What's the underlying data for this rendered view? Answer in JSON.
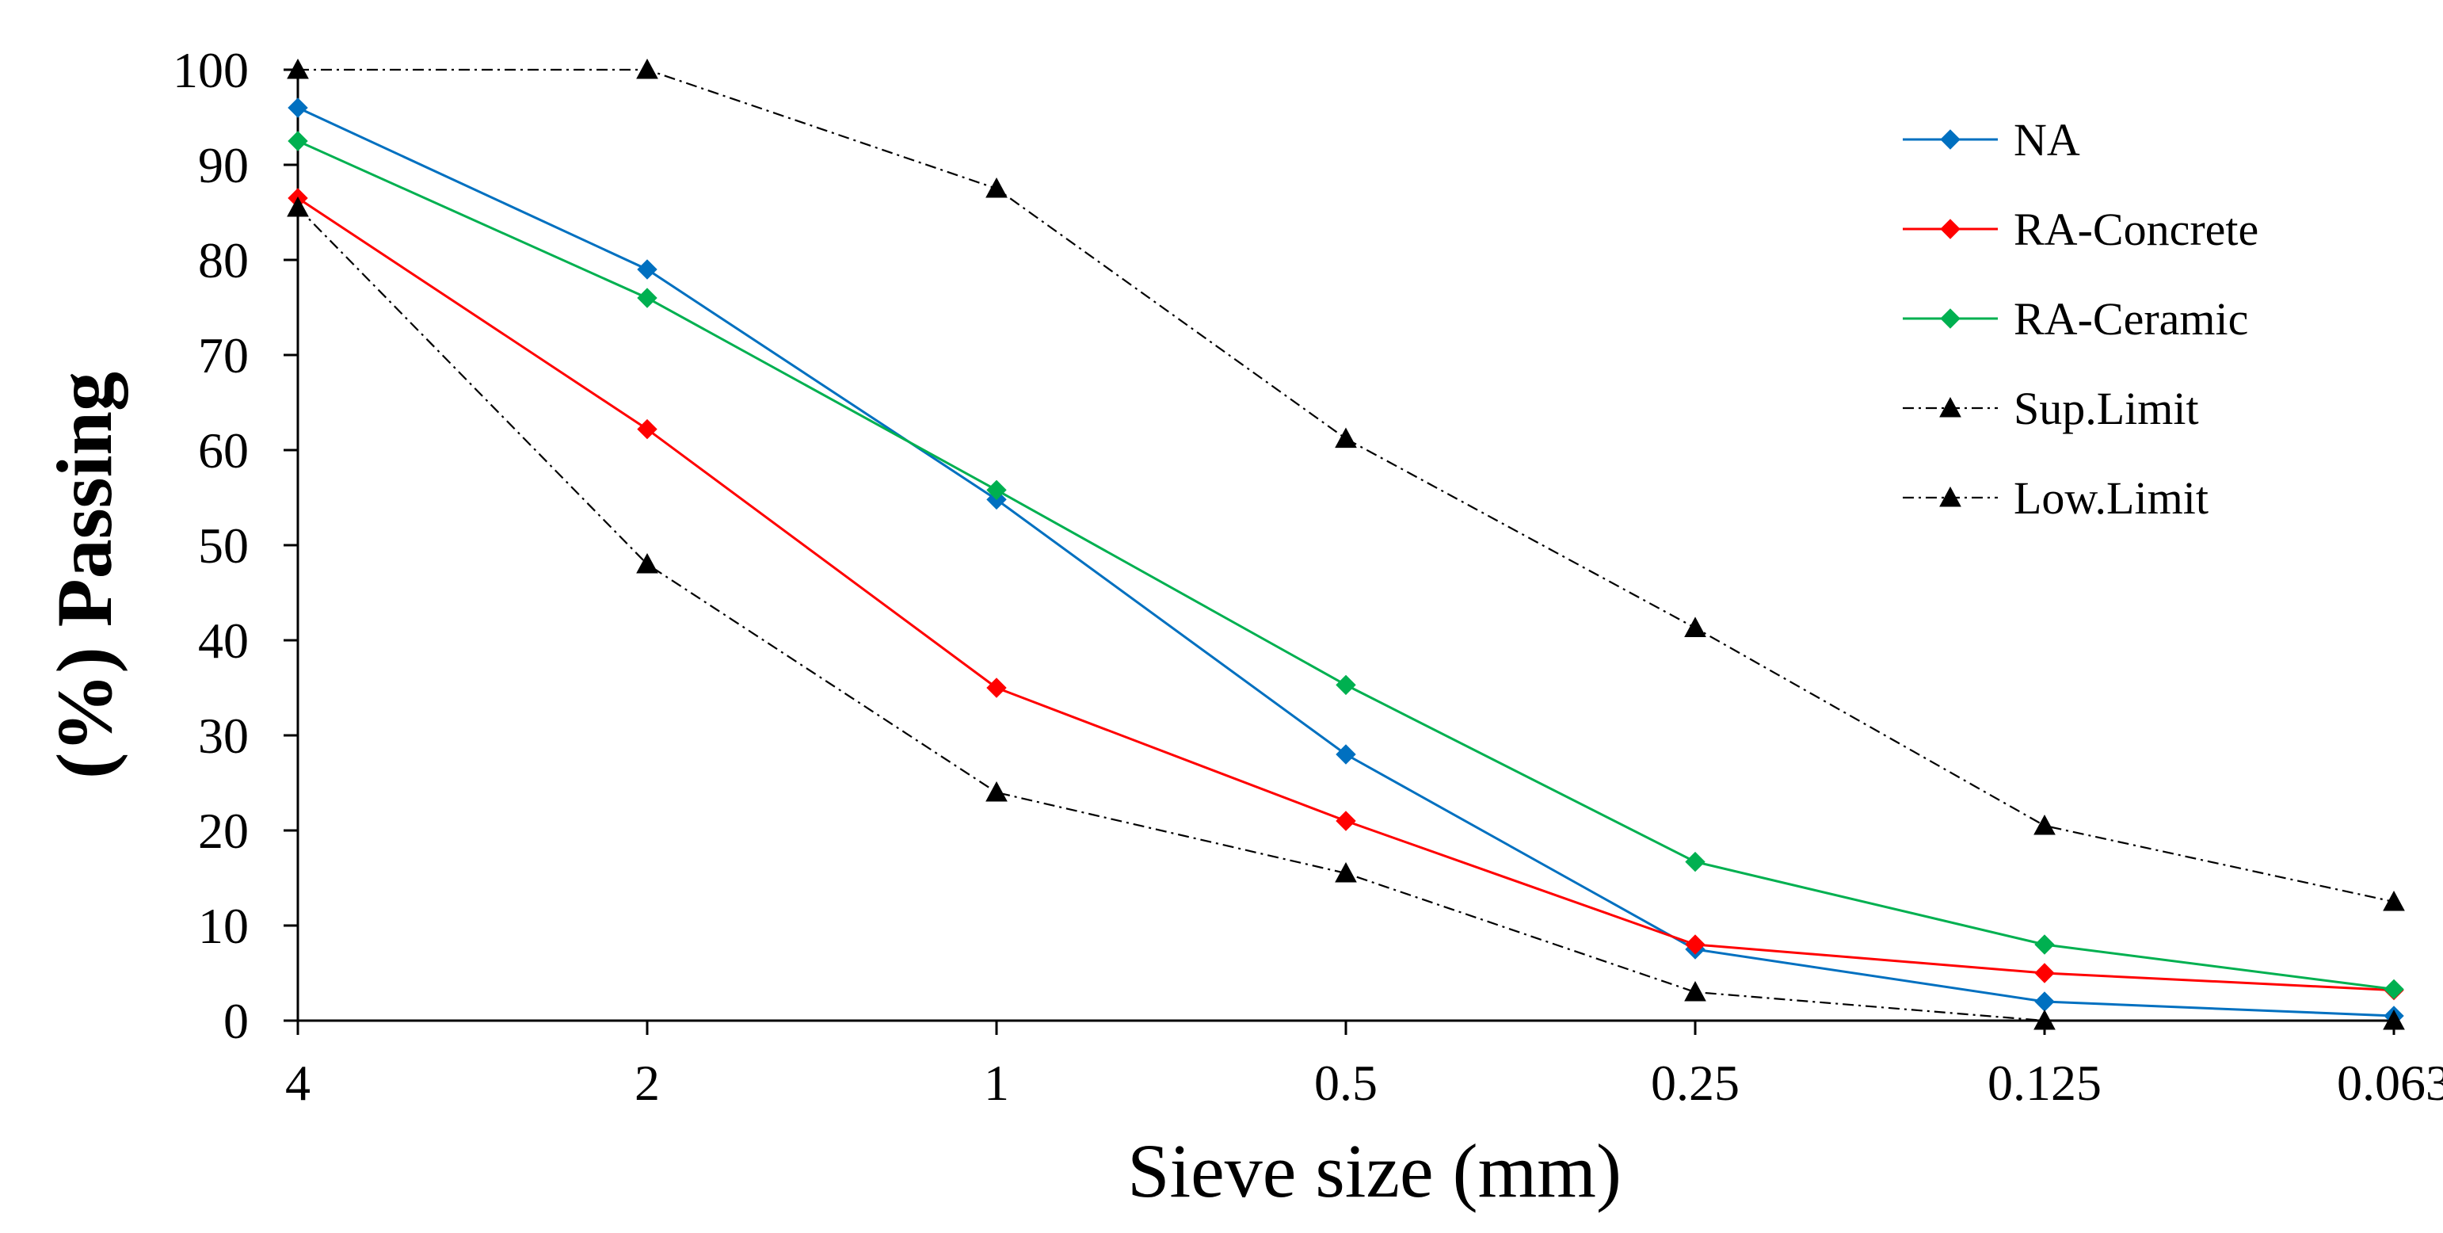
{
  "chart_data": {
    "type": "line",
    "title": "",
    "xlabel": "Sieve size (mm)",
    "ylabel": "(%) Passing",
    "categories": [
      "4",
      "2",
      "1",
      "0.5",
      "0.25",
      "0.125",
      "0.063"
    ],
    "ylim": [
      0,
      100
    ],
    "yticks": [
      0,
      10,
      20,
      30,
      40,
      50,
      60,
      70,
      80,
      90,
      100
    ],
    "grid": false,
    "legend_position": "top-right",
    "series": [
      {
        "name": "NA",
        "color": "#0070C0",
        "marker": "diamond",
        "linestyle": "solid",
        "values": [
          96,
          79,
          54.8,
          28,
          7.5,
          2,
          0.5
        ]
      },
      {
        "name": "RA-Concrete",
        "color": "#FF0000",
        "marker": "diamond",
        "linestyle": "solid",
        "values": [
          86.5,
          62.2,
          35,
          21,
          8,
          5,
          3.2
        ]
      },
      {
        "name": "RA-Ceramic",
        "color": "#00B050",
        "marker": "diamond",
        "linestyle": "solid",
        "values": [
          92.5,
          76,
          55.8,
          35.3,
          16.7,
          8,
          3.3
        ]
      },
      {
        "name": "Sup.Limit",
        "color": "#000000",
        "marker": "triangle",
        "linestyle": "dashdot",
        "values": [
          100,
          100,
          87.5,
          61.2,
          41.3,
          20.5,
          12.5
        ]
      },
      {
        "name": "Low.Limit",
        "color": "#000000",
        "marker": "triangle",
        "linestyle": "dashdot",
        "values": [
          85.5,
          48,
          24,
          15.5,
          3,
          0,
          0
        ]
      }
    ]
  }
}
